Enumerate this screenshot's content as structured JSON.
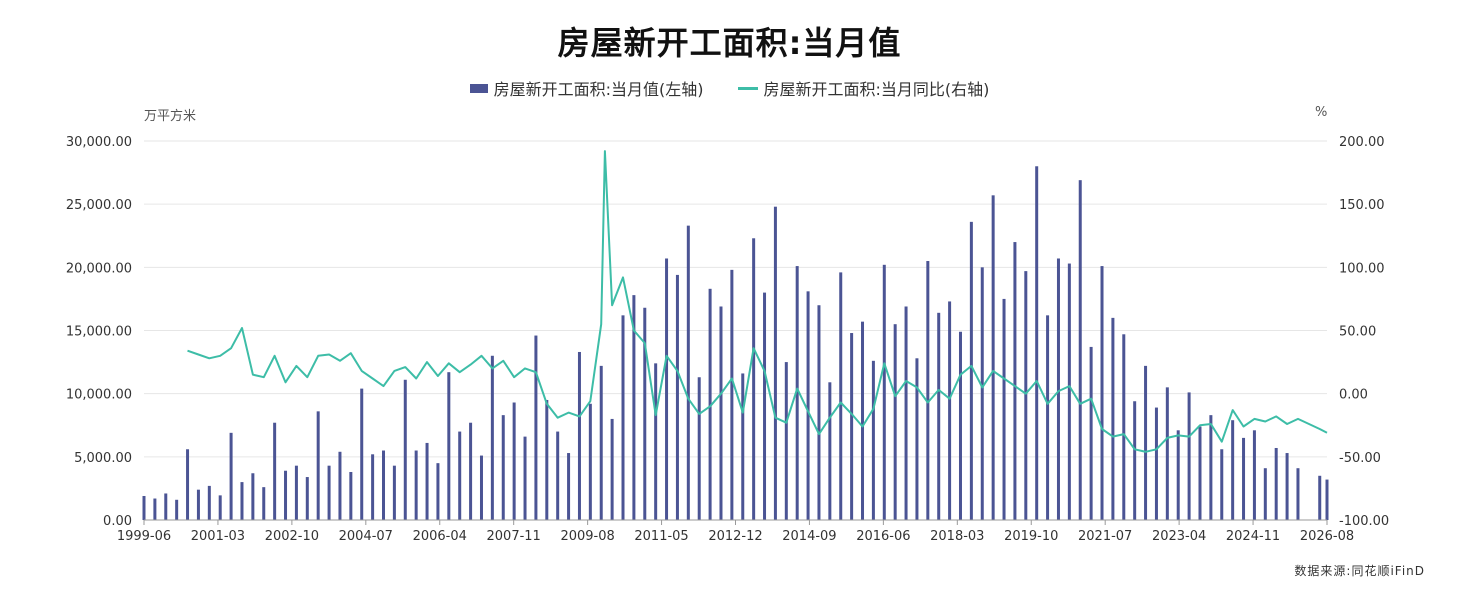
{
  "title": "房屋新开工面积:当月值",
  "legend": {
    "bar_label": "房屋新开工面积:当月值(左轴)",
    "line_label": "房屋新开工面积:当月同比(右轴)"
  },
  "units": {
    "left": "万平方米",
    "right": "%"
  },
  "source": "数据来源:同花顺iFinD",
  "colors": {
    "bar": "#4b5494",
    "line": "#3dbda7",
    "grid": "#e6e6e6",
    "axis": "#999999"
  },
  "chart_data": {
    "type": "bar",
    "x_start": "1999-06",
    "x_end": "2026-08",
    "x_ticks": [
      "1999-06",
      "2001-03",
      "2002-10",
      "2004-07",
      "2006-04",
      "2007-11",
      "2009-08",
      "2011-05",
      "2012-12",
      "2014-09",
      "2016-06",
      "2018-03",
      "2019-10",
      "2021-07",
      "2023-04",
      "2024-11",
      "2026-08"
    ],
    "y_left": {
      "label": "万平方米",
      "min": 0,
      "max": 30000,
      "ticks": [
        "0.00",
        "5,000.00",
        "10,000.00",
        "15,000.00",
        "20,000.00",
        "25,000.00",
        "30,000.00"
      ]
    },
    "y_right": {
      "label": "%",
      "min": -100,
      "max": 200,
      "ticks": [
        "-100.00",
        "-50.00",
        "0.00",
        "50.00",
        "100.00",
        "150.00",
        "200.00"
      ]
    },
    "series": [
      {
        "name": "房屋新开工面积:当月值(左轴)",
        "axis": "left",
        "type": "bar",
        "points": [
          [
            "1999-06",
            1900
          ],
          [
            "1999-09",
            1700
          ],
          [
            "1999-12",
            2100
          ],
          [
            "2000-03",
            1600
          ],
          [
            "2000-06",
            5600
          ],
          [
            "2000-09",
            2400
          ],
          [
            "2000-12",
            2700
          ],
          [
            "2001-03",
            1950
          ],
          [
            "2001-06",
            6900
          ],
          [
            "2001-09",
            3000
          ],
          [
            "2001-12",
            3700
          ],
          [
            "2002-03",
            2600
          ],
          [
            "2002-06",
            7700
          ],
          [
            "2002-09",
            3900
          ],
          [
            "2002-12",
            4300
          ],
          [
            "2003-03",
            3400
          ],
          [
            "2003-06",
            8600
          ],
          [
            "2003-09",
            4300
          ],
          [
            "2003-12",
            5400
          ],
          [
            "2004-03",
            3800
          ],
          [
            "2004-06",
            10400
          ],
          [
            "2004-09",
            5200
          ],
          [
            "2004-12",
            5500
          ],
          [
            "2005-03",
            4300
          ],
          [
            "2005-06",
            11100
          ],
          [
            "2005-09",
            5500
          ],
          [
            "2005-12",
            6100
          ],
          [
            "2006-03",
            4500
          ],
          [
            "2006-06",
            11700
          ],
          [
            "2006-09",
            7000
          ],
          [
            "2006-12",
            7700
          ],
          [
            "2007-03",
            5100
          ],
          [
            "2007-06",
            13000
          ],
          [
            "2007-09",
            8300
          ],
          [
            "2007-12",
            9300
          ],
          [
            "2008-03",
            6600
          ],
          [
            "2008-06",
            14600
          ],
          [
            "2008-09",
            9500
          ],
          [
            "2008-12",
            7000
          ],
          [
            "2009-03",
            5300
          ],
          [
            "2009-06",
            13300
          ],
          [
            "2009-09",
            9200
          ],
          [
            "2009-12",
            12200
          ],
          [
            "2010-03",
            8000
          ],
          [
            "2010-06",
            16200
          ],
          [
            "2010-09",
            17800
          ],
          [
            "2010-12",
            16800
          ],
          [
            "2011-03",
            12400
          ],
          [
            "2011-06",
            20700
          ],
          [
            "2011-09",
            19400
          ],
          [
            "2011-12",
            23300
          ],
          [
            "2012-03",
            11300
          ],
          [
            "2012-06",
            18300
          ],
          [
            "2012-09",
            16900
          ],
          [
            "2012-12",
            19800
          ],
          [
            "2013-03",
            11600
          ],
          [
            "2013-06",
            22300
          ],
          [
            "2013-09",
            18000
          ],
          [
            "2013-12",
            24800
          ],
          [
            "2014-03",
            12500
          ],
          [
            "2014-06",
            20100
          ],
          [
            "2014-09",
            18100
          ],
          [
            "2014-12",
            17000
          ],
          [
            "2015-03",
            10900
          ],
          [
            "2015-06",
            19600
          ],
          [
            "2015-09",
            14800
          ],
          [
            "2015-12",
            15700
          ],
          [
            "2016-03",
            12600
          ],
          [
            "2016-06",
            20200
          ],
          [
            "2016-09",
            15500
          ],
          [
            "2016-12",
            16900
          ],
          [
            "2017-03",
            12800
          ],
          [
            "2017-06",
            20500
          ],
          [
            "2017-09",
            16400
          ],
          [
            "2017-12",
            17300
          ],
          [
            "2018-03",
            14900
          ],
          [
            "2018-06",
            23600
          ],
          [
            "2018-09",
            20000
          ],
          [
            "2018-12",
            25700
          ],
          [
            "2019-03",
            17500
          ],
          [
            "2019-06",
            22000
          ],
          [
            "2019-09",
            19700
          ],
          [
            "2019-12",
            28000
          ],
          [
            "2020-03",
            16200
          ],
          [
            "2020-06",
            20700
          ],
          [
            "2020-09",
            20300
          ],
          [
            "2020-12",
            26900
          ],
          [
            "2021-03",
            13700
          ],
          [
            "2021-06",
            20100
          ],
          [
            "2021-09",
            16000
          ],
          [
            "2021-12",
            14700
          ],
          [
            "2022-03",
            9400
          ],
          [
            "2022-06",
            12200
          ],
          [
            "2022-09",
            8900
          ],
          [
            "2022-12",
            10500
          ],
          [
            "2023-03",
            7100
          ],
          [
            "2023-06",
            10100
          ],
          [
            "2023-09",
            7400
          ],
          [
            "2023-12",
            8300
          ],
          [
            "2024-03",
            5600
          ],
          [
            "2024-06",
            7900
          ],
          [
            "2024-09",
            6500
          ],
          [
            "2024-12",
            7100
          ],
          [
            "2025-03",
            4100
          ],
          [
            "2025-06",
            5700
          ],
          [
            "2025-09",
            5300
          ],
          [
            "2025-12",
            4100
          ],
          [
            "2026-06",
            3500
          ],
          [
            "2026-08",
            3200
          ]
        ]
      },
      {
        "name": "房屋新开工面积:当月同比(右轴)",
        "axis": "right",
        "type": "line",
        "points": [
          [
            "2000-06",
            34
          ],
          [
            "2000-09",
            31
          ],
          [
            "2000-12",
            28
          ],
          [
            "2001-03",
            30
          ],
          [
            "2001-06",
            36
          ],
          [
            "2001-09",
            52
          ],
          [
            "2001-12",
            15
          ],
          [
            "2002-03",
            13
          ],
          [
            "2002-06",
            30
          ],
          [
            "2002-09",
            9
          ],
          [
            "2002-12",
            22
          ],
          [
            "2003-03",
            13
          ],
          [
            "2003-06",
            30
          ],
          [
            "2003-09",
            31
          ],
          [
            "2003-12",
            26
          ],
          [
            "2004-03",
            32
          ],
          [
            "2004-06",
            18
          ],
          [
            "2004-09",
            12
          ],
          [
            "2004-12",
            6
          ],
          [
            "2005-03",
            18
          ],
          [
            "2005-06",
            21
          ],
          [
            "2005-09",
            12
          ],
          [
            "2005-12",
            25
          ],
          [
            "2006-03",
            14
          ],
          [
            "2006-06",
            24
          ],
          [
            "2006-09",
            17
          ],
          [
            "2006-12",
            23
          ],
          [
            "2007-03",
            30
          ],
          [
            "2007-06",
            20
          ],
          [
            "2007-09",
            26
          ],
          [
            "2007-12",
            13
          ],
          [
            "2008-03",
            20
          ],
          [
            "2008-06",
            17
          ],
          [
            "2008-09",
            -8
          ],
          [
            "2008-12",
            -19
          ],
          [
            "2009-03",
            -15
          ],
          [
            "2009-06",
            -18
          ],
          [
            "2009-09",
            -6
          ],
          [
            "2009-12",
            55
          ],
          [
            "2010-01",
            192
          ],
          [
            "2010-03",
            70
          ],
          [
            "2010-06",
            92
          ],
          [
            "2010-09",
            50
          ],
          [
            "2010-12",
            40
          ],
          [
            "2011-03",
            -17
          ],
          [
            "2011-06",
            30
          ],
          [
            "2011-09",
            18
          ],
          [
            "2011-12",
            -4
          ],
          [
            "2012-03",
            -16
          ],
          [
            "2012-06",
            -10
          ],
          [
            "2012-09",
            0
          ],
          [
            "2012-12",
            12
          ],
          [
            "2013-03",
            -15
          ],
          [
            "2013-06",
            36
          ],
          [
            "2013-09",
            18
          ],
          [
            "2013-12",
            -19
          ],
          [
            "2014-03",
            -23
          ],
          [
            "2014-06",
            4
          ],
          [
            "2014-09",
            -14
          ],
          [
            "2014-12",
            -32
          ],
          [
            "2015-03",
            -19
          ],
          [
            "2015-06",
            -7
          ],
          [
            "2015-09",
            -16
          ],
          [
            "2015-12",
            -26
          ],
          [
            "2016-03",
            -12
          ],
          [
            "2016-06",
            24
          ],
          [
            "2016-09",
            -2
          ],
          [
            "2016-12",
            10
          ],
          [
            "2017-03",
            5
          ],
          [
            "2017-06",
            -7
          ],
          [
            "2017-09",
            3
          ],
          [
            "2017-12",
            -4
          ],
          [
            "2018-03",
            15
          ],
          [
            "2018-06",
            22
          ],
          [
            "2018-09",
            5
          ],
          [
            "2018-12",
            18
          ],
          [
            "2019-03",
            12
          ],
          [
            "2019-06",
            6
          ],
          [
            "2019-09",
            0
          ],
          [
            "2019-12",
            10
          ],
          [
            "2020-03",
            -8
          ],
          [
            "2020-06",
            2
          ],
          [
            "2020-09",
            6
          ],
          [
            "2020-12",
            -8
          ],
          [
            "2021-03",
            -4
          ],
          [
            "2021-06",
            -28
          ],
          [
            "2021-09",
            -34
          ],
          [
            "2021-12",
            -32
          ],
          [
            "2022-03",
            -44
          ],
          [
            "2022-06",
            -46
          ],
          [
            "2022-09",
            -44
          ],
          [
            "2022-12",
            -35
          ],
          [
            "2023-03",
            -33
          ],
          [
            "2023-06",
            -34
          ],
          [
            "2023-09",
            -25
          ],
          [
            "2023-12",
            -24
          ],
          [
            "2024-03",
            -38
          ],
          [
            "2024-06",
            -13
          ],
          [
            "2024-09",
            -26
          ],
          [
            "2024-12",
            -20
          ],
          [
            "2025-03",
            -22
          ],
          [
            "2025-06",
            -18
          ],
          [
            "2025-09",
            -24
          ],
          [
            "2025-12",
            -20
          ],
          [
            "2026-06",
            -28
          ],
          [
            "2026-08",
            -31
          ]
        ]
      }
    ],
    "legend_position": "top",
    "grid": true
  }
}
